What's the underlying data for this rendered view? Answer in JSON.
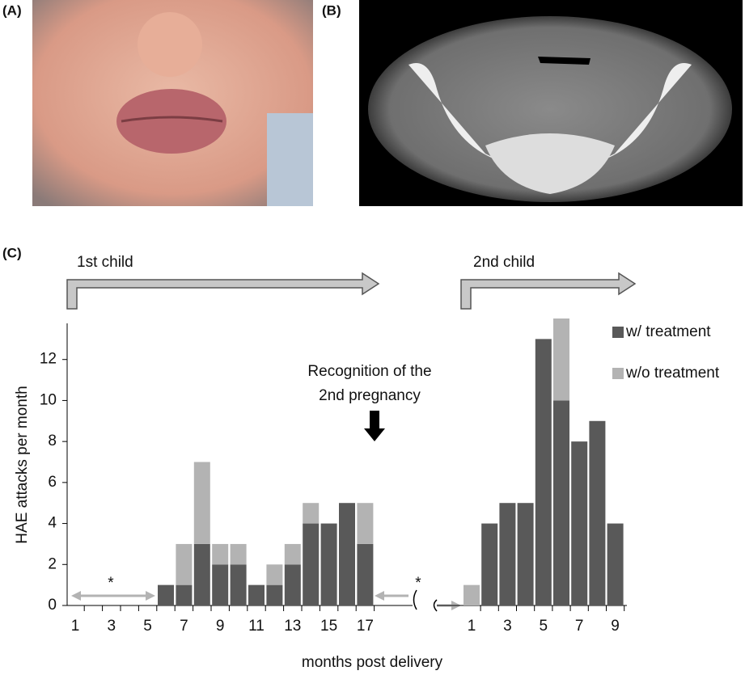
{
  "panel_labels": [
    "(A)",
    "(B)",
    "(C)"
  ],
  "chart_data": {
    "type": "bar",
    "stacked": true,
    "y_label": "HAE attacks per month",
    "x_label": "months post delivery",
    "ylim": [
      0,
      14
    ],
    "yticks": [
      0,
      2,
      4,
      6,
      8,
      10,
      12
    ],
    "legend": "upper right",
    "legend_entries": [
      {
        "name": "w/ treatment",
        "color": "#595959"
      },
      {
        "name": "w/o treatment",
        "color": "#b3b3b3"
      }
    ],
    "annotation": [
      "Recognition of the",
      "2nd pregnancy"
    ],
    "panels": [
      {
        "title": "1st child",
        "note": "*",
        "categories": [
          1,
          null,
          3,
          null,
          5,
          null,
          7,
          null,
          9,
          null,
          11,
          null,
          13,
          null,
          15,
          null,
          17
        ],
        "series": [
          {
            "values": [
              null,
              null,
              null,
              null,
              null,
              1,
              1,
              3,
              2,
              2,
              1,
              1,
              2,
              4,
              4,
              5,
              3
            ]
          },
          {
            "values": [
              null,
              null,
              null,
              null,
              null,
              0,
              2,
              4,
              1,
              1,
              0,
              1,
              1,
              1,
              0,
              0,
              2
            ]
          }
        ]
      },
      {
        "title": "2nd child",
        "note": "*",
        "categories": [
          1,
          null,
          3,
          null,
          5,
          null,
          7,
          null,
          9
        ],
        "series": [
          {
            "values": [
              0,
              4,
              5,
              5,
              13,
              10,
              8,
              9,
              4
            ]
          },
          {
            "values": [
              1,
              0,
              0,
              0,
              0,
              4,
              0,
              0,
              0
            ]
          }
        ]
      }
    ]
  }
}
